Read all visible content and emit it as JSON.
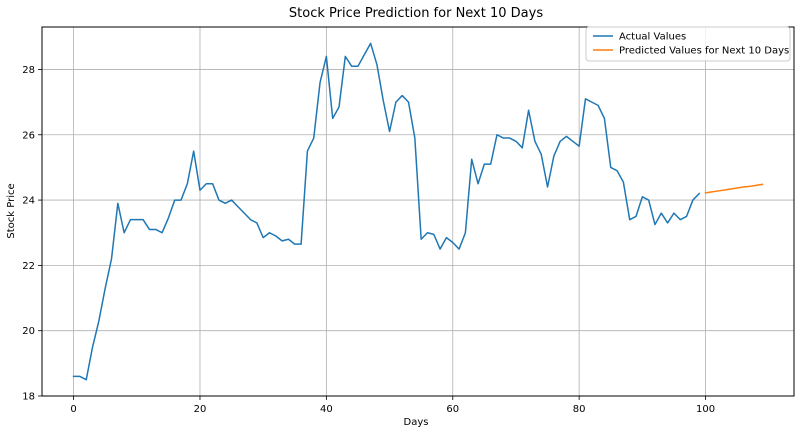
{
  "chart_data": {
    "type": "line",
    "title": "Stock Price Prediction for Next 10 Days",
    "xlabel": "Days",
    "ylabel": "Stock Price",
    "xlim": [
      -5,
      114
    ],
    "ylim": [
      18,
      29.3
    ],
    "xticks": [
      0,
      20,
      40,
      60,
      80,
      100
    ],
    "yticks": [
      18,
      20,
      22,
      24,
      26,
      28
    ],
    "grid": true,
    "legend_position": "top-right",
    "series": [
      {
        "name": "Actual Values",
        "color": "#1f77b4",
        "x": [
          0,
          1,
          2,
          3,
          4,
          5,
          6,
          7,
          8,
          9,
          10,
          11,
          12,
          13,
          14,
          15,
          16,
          17,
          18,
          19,
          20,
          21,
          22,
          23,
          24,
          25,
          26,
          27,
          28,
          29,
          30,
          31,
          32,
          33,
          34,
          35,
          36,
          37,
          38,
          39,
          40,
          41,
          42,
          43,
          44,
          45,
          46,
          47,
          48,
          49,
          50,
          51,
          52,
          53,
          54,
          55,
          56,
          57,
          58,
          59,
          60,
          61,
          62,
          63,
          64,
          65,
          66,
          67,
          68,
          69,
          70,
          71,
          72,
          73,
          74,
          75,
          76,
          77,
          78,
          79,
          80,
          81,
          82,
          83,
          84,
          85,
          86,
          87,
          88,
          89,
          90,
          91,
          92,
          93,
          94,
          95,
          96,
          97,
          98,
          99
        ],
        "y": [
          18.6,
          18.6,
          18.5,
          19.5,
          20.3,
          21.3,
          22.2,
          23.9,
          23.0,
          23.4,
          23.4,
          23.4,
          23.1,
          23.1,
          23.0,
          23.45,
          24.0,
          24.0,
          24.5,
          25.5,
          24.3,
          24.5,
          24.5,
          24.0,
          23.9,
          24.0,
          23.8,
          23.6,
          23.4,
          23.3,
          22.85,
          23.0,
          22.9,
          22.75,
          22.8,
          22.65,
          22.65,
          25.5,
          25.9,
          27.6,
          28.4,
          26.5,
          26.85,
          28.4,
          28.1,
          28.1,
          28.45,
          28.8,
          28.15,
          27.05,
          26.1,
          27.0,
          27.2,
          27.0,
          25.9,
          22.8,
          23.0,
          22.95,
          22.5,
          22.85,
          22.7,
          22.5,
          23.0,
          25.25,
          24.5,
          25.1,
          25.1,
          26.0,
          25.9,
          25.9,
          25.8,
          25.6,
          26.75,
          25.8,
          25.4,
          24.4,
          25.35,
          25.8,
          25.95,
          25.8,
          25.65,
          27.1,
          27.0,
          26.9,
          26.5,
          25.0,
          24.9,
          24.55,
          23.4,
          23.5,
          24.1,
          24.0,
          23.25,
          23.6,
          23.3,
          23.6,
          23.4,
          23.5,
          24.0,
          24.2
        ]
      },
      {
        "name": "Predicted Values for Next 10 Days",
        "color": "#ff7f0e",
        "x": [
          100,
          101,
          102,
          103,
          104,
          105,
          106,
          107,
          108,
          109
        ],
        "y": [
          24.22,
          24.25,
          24.28,
          24.31,
          24.34,
          24.37,
          24.4,
          24.42,
          24.45,
          24.48
        ]
      }
    ]
  }
}
